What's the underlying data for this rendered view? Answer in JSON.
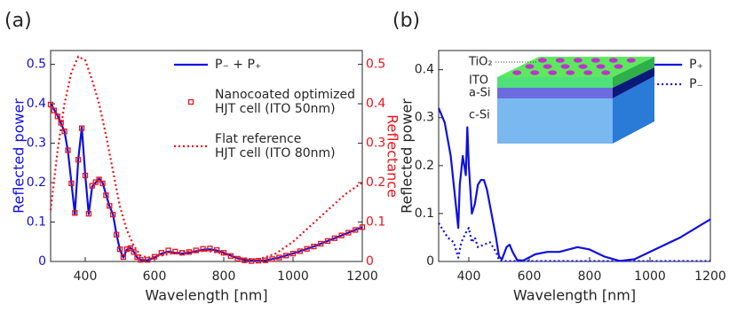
{
  "chart_data": [
    {
      "type": "line",
      "label": "(a)",
      "xlabel": "Wavelength [nm]",
      "ylabel": "Reflected power",
      "y2label": "Reflectance",
      "ycolor": "#1010e0",
      "y2color": "#e8141c",
      "xlim": [
        300,
        1200
      ],
      "xticks": [
        400,
        600,
        800,
        1000,
        1200
      ],
      "ylim": [
        0,
        0.535
      ],
      "yticks": [
        0,
        0.1,
        0.2,
        0.3,
        0.4,
        0.5
      ],
      "y2lim": [
        0,
        0.535
      ],
      "y2ticks": [
        0,
        0.1,
        0.2,
        0.3,
        0.4,
        0.5
      ],
      "legend": "upper right",
      "series": [
        {
          "name": "P₋ + P₊",
          "color": "#1010e0",
          "linestyle": "solid",
          "x": [
            300,
            310,
            320,
            330,
            340,
            350,
            360,
            370,
            380,
            390,
            400,
            410,
            420,
            430,
            440,
            450,
            460,
            470,
            480,
            490,
            500,
            510,
            520,
            530,
            540,
            550,
            560,
            580,
            600,
            620,
            640,
            660,
            680,
            700,
            720,
            740,
            760,
            780,
            800,
            820,
            840,
            860,
            880,
            900,
            920,
            940,
            960,
            980,
            1000,
            1020,
            1040,
            1060,
            1080,
            1100,
            1120,
            1140,
            1160,
            1180,
            1200
          ],
          "values": [
            0.4,
            0.385,
            0.37,
            0.35,
            0.33,
            0.28,
            0.2,
            0.12,
            0.26,
            0.34,
            0.22,
            0.12,
            0.19,
            0.2,
            0.21,
            0.2,
            0.17,
            0.14,
            0.12,
            0.07,
            0.03,
            0.01,
            0.03,
            0.035,
            0.025,
            0.01,
            0.004,
            0.003,
            0.01,
            0.02,
            0.025,
            0.022,
            0.02,
            0.022,
            0.026,
            0.03,
            0.031,
            0.028,
            0.022,
            0.015,
            0.008,
            0.004,
            0.002,
            0.002,
            0.003,
            0.006,
            0.01,
            0.015,
            0.02,
            0.026,
            0.032,
            0.038,
            0.045,
            0.052,
            0.059,
            0.066,
            0.073,
            0.08,
            0.087
          ]
        },
        {
          "name": "Nanocoated optimized\nHJT cell (ITO 50nm)",
          "color": "#e8141c",
          "marker": "square",
          "axis": "y2",
          "x": [
            300,
            310,
            320,
            330,
            340,
            350,
            360,
            370,
            380,
            390,
            400,
            410,
            420,
            430,
            440,
            450,
            460,
            470,
            480,
            490,
            500,
            510,
            520,
            530,
            540,
            550,
            560,
            580,
            600,
            620,
            640,
            660,
            680,
            700,
            720,
            740,
            760,
            780,
            800,
            820,
            840,
            860,
            880,
            900,
            920,
            940,
            960,
            980,
            1000,
            1020,
            1040,
            1060,
            1080,
            1100,
            1120,
            1140,
            1160,
            1180,
            1200
          ],
          "values": [
            0.398,
            0.383,
            0.368,
            0.352,
            0.33,
            0.282,
            0.198,
            0.123,
            0.258,
            0.338,
            0.218,
            0.121,
            0.192,
            0.201,
            0.208,
            0.198,
            0.168,
            0.141,
            0.119,
            0.068,
            0.031,
            0.011,
            0.031,
            0.034,
            0.024,
            0.011,
            0.004,
            0.004,
            0.012,
            0.022,
            0.028,
            0.025,
            0.022,
            0.024,
            0.028,
            0.032,
            0.033,
            0.029,
            0.022,
            0.014,
            0.007,
            0.003,
            0.001,
            0.002,
            0.003,
            0.006,
            0.01,
            0.015,
            0.02,
            0.026,
            0.032,
            0.038,
            0.045,
            0.052,
            0.059,
            0.066,
            0.073,
            0.08,
            0.087
          ]
        },
        {
          "name": "Flat reference\nHJT cell (ITO 80nm)",
          "color": "#e8141c",
          "linestyle": "dotted",
          "axis": "y2",
          "x": [
            300,
            320,
            340,
            360,
            380,
            400,
            420,
            440,
            460,
            480,
            500,
            520,
            540,
            560,
            580,
            600,
            650,
            700,
            750,
            800,
            850,
            900,
            950,
            1000,
            1050,
            1100,
            1150,
            1200
          ],
          "values": [
            0.13,
            0.28,
            0.4,
            0.48,
            0.52,
            0.51,
            0.46,
            0.4,
            0.32,
            0.23,
            0.14,
            0.08,
            0.04,
            0.015,
            0.01,
            0.012,
            0.02,
            0.025,
            0.027,
            0.02,
            0.008,
            0.005,
            0.02,
            0.05,
            0.09,
            0.13,
            0.17,
            0.2
          ]
        }
      ]
    },
    {
      "type": "line",
      "label": "(b)",
      "xlabel": "Wavelength [nm]",
      "ylabel": "Reflected power",
      "xlim": [
        300,
        1200
      ],
      "xticks": [
        400,
        600,
        800,
        1000,
        1200
      ],
      "ylim": [
        0,
        0.44
      ],
      "yticks": [
        0,
        0.1,
        0.2,
        0.3,
        0.4
      ],
      "legend": "upper right",
      "annotations": [
        "TiO₂",
        "ITO",
        "a-Si",
        "c-Si"
      ],
      "series": [
        {
          "name": "P₊",
          "color": "#1010e0",
          "linestyle": "solid",
          "x": [
            300,
            320,
            340,
            350,
            360,
            365,
            370,
            380,
            390,
            395,
            400,
            410,
            420,
            430,
            440,
            450,
            460,
            475,
            490,
            500,
            510,
            525,
            535,
            545,
            560,
            580,
            620,
            660,
            700,
            760,
            800,
            850,
            900,
            950,
            1000,
            1100,
            1200
          ],
          "values": [
            0.32,
            0.29,
            0.22,
            0.16,
            0.1,
            0.07,
            0.16,
            0.22,
            0.18,
            0.28,
            0.2,
            0.1,
            0.12,
            0.16,
            0.17,
            0.17,
            0.15,
            0.1,
            0.05,
            0.01,
            0.005,
            0.03,
            0.035,
            0.02,
            0.003,
            0.002,
            0.015,
            0.02,
            0.02,
            0.03,
            0.025,
            0.01,
            0.001,
            0.005,
            0.02,
            0.05,
            0.088
          ]
        },
        {
          "name": "P₋",
          "color": "#1010e0",
          "linestyle": "dotted",
          "x": [
            300,
            330,
            350,
            365,
            375,
            390,
            400,
            410,
            420,
            430,
            450,
            470,
            490,
            500,
            520,
            600,
            800,
            1000,
            1200
          ],
          "values": [
            0.08,
            0.05,
            0.04,
            0.008,
            0.04,
            0.06,
            0.07,
            0.04,
            0.05,
            0.03,
            0.035,
            0.04,
            0.02,
            0.003,
            0.001,
            0.001,
            0.001,
            0.001,
            0.001
          ]
        }
      ]
    }
  ]
}
